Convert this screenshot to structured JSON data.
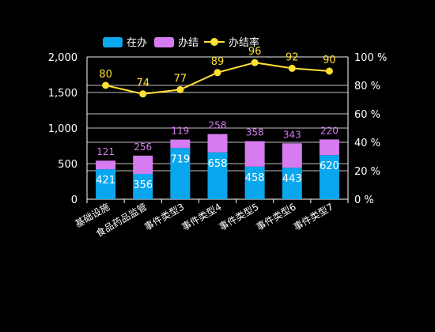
{
  "chart_data": {
    "type": "bar",
    "categories": [
      "基础设施",
      "食品药品监管",
      "事件类型3",
      "事件类型4",
      "事件类型5",
      "事件类型6",
      "事件类型7"
    ],
    "series": [
      {
        "name": "在办",
        "type": "bar",
        "stack": true,
        "axis": "left",
        "color": "#0aa7ee",
        "values": [
          421,
          356,
          719,
          658,
          458,
          443,
          620
        ]
      },
      {
        "name": "办结",
        "type": "bar",
        "stack": true,
        "axis": "left",
        "color": "#d67cf0",
        "values": [
          121,
          256,
          119,
          258,
          358,
          343,
          220
        ]
      },
      {
        "name": "办结率",
        "type": "line",
        "axis": "right",
        "color": "#ffe033",
        "unit": "%",
        "values": [
          80,
          74,
          77,
          89,
          96,
          92,
          90
        ]
      }
    ],
    "y_left": {
      "range": [
        0,
        2000
      ],
      "ticks": [
        "0",
        "500",
        "1,000",
        "1,500",
        "2,000"
      ]
    },
    "y_right": {
      "range": [
        0,
        100
      ],
      "ticks": [
        "0 %",
        "20 %",
        "40 %",
        "60 %",
        "80 %",
        "100 %"
      ]
    },
    "grid": true,
    "legend_position": "top-left",
    "x_label_rotation": "slanted",
    "background": "#000000",
    "axis_color": "#ffffff"
  }
}
